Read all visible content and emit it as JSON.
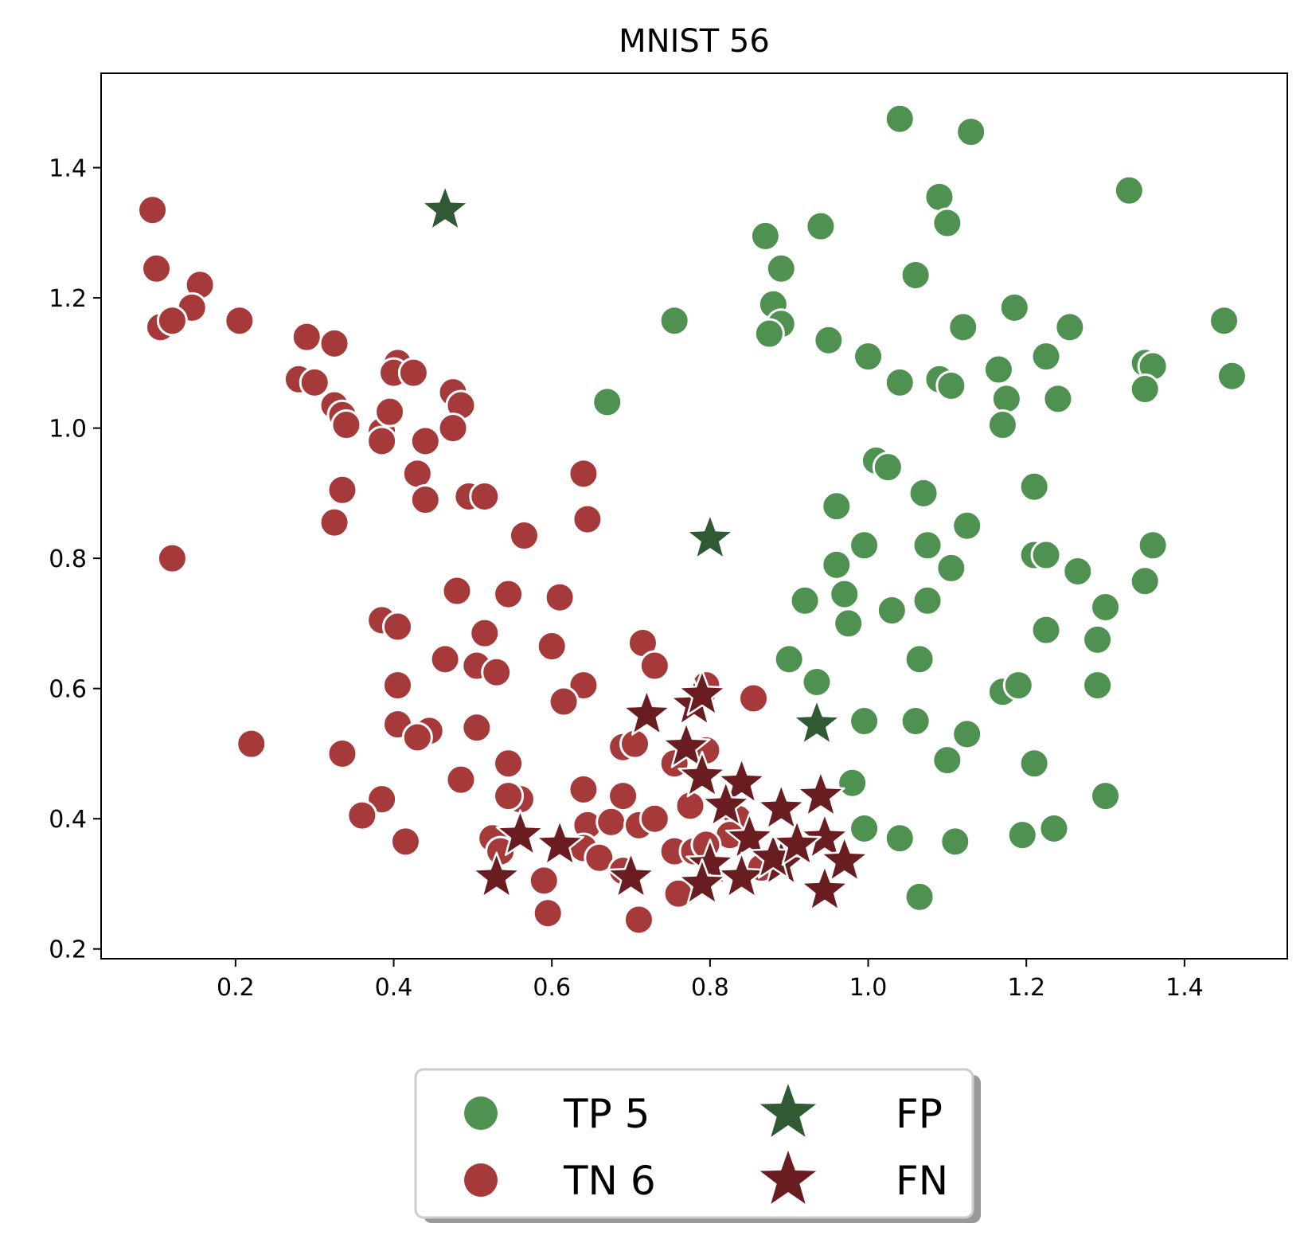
{
  "chart_data": {
    "type": "scatter",
    "title": "MNIST 56",
    "xlabel": "",
    "ylabel": "",
    "xlim": [
      0.03,
      1.53
    ],
    "ylim": [
      0.185,
      1.545
    ],
    "xticks": [
      0.2,
      0.4,
      0.6,
      0.8,
      1.0,
      1.2,
      1.4
    ],
    "yticks": [
      0.2,
      0.4,
      0.6,
      0.8,
      1.0,
      1.2,
      1.4
    ],
    "xtick_labels": [
      "0.2",
      "0.4",
      "0.6",
      "0.8",
      "1.0",
      "1.2",
      "1.4"
    ],
    "ytick_labels": [
      "0.2",
      "0.4",
      "0.6",
      "0.8",
      "1.0",
      "1.2",
      "1.4"
    ],
    "grid": false,
    "legend_position": "bottom-center",
    "series": [
      {
        "name": "TP 5",
        "marker": "circle",
        "color": "#4e9150",
        "points": [
          [
            1.04,
            1.475
          ],
          [
            1.13,
            1.455
          ],
          [
            1.33,
            1.365
          ],
          [
            1.09,
            1.355
          ],
          [
            1.1,
            1.315
          ],
          [
            0.94,
            1.31
          ],
          [
            0.87,
            1.295
          ],
          [
            0.89,
            1.245
          ],
          [
            1.06,
            1.235
          ],
          [
            0.88,
            1.19
          ],
          [
            0.89,
            1.16
          ],
          [
            0.875,
            1.145
          ],
          [
            0.755,
            1.165
          ],
          [
            1.185,
            1.185
          ],
          [
            1.12,
            1.155
          ],
          [
            1.255,
            1.155
          ],
          [
            1.45,
            1.165
          ],
          [
            0.95,
            1.135
          ],
          [
            1.0,
            1.11
          ],
          [
            1.225,
            1.11
          ],
          [
            1.35,
            1.1
          ],
          [
            1.36,
            1.095
          ],
          [
            1.46,
            1.08
          ],
          [
            1.165,
            1.09
          ],
          [
            1.04,
            1.07
          ],
          [
            1.09,
            1.075
          ],
          [
            1.105,
            1.065
          ],
          [
            1.35,
            1.06
          ],
          [
            1.24,
            1.045
          ],
          [
            1.175,
            1.045
          ],
          [
            1.17,
            1.005
          ],
          [
            0.67,
            1.04
          ],
          [
            1.01,
            0.95
          ],
          [
            1.025,
            0.94
          ],
          [
            1.07,
            0.9
          ],
          [
            1.21,
            0.91
          ],
          [
            0.96,
            0.88
          ],
          [
            1.125,
            0.85
          ],
          [
            0.995,
            0.82
          ],
          [
            1.075,
            0.82
          ],
          [
            1.36,
            0.82
          ],
          [
            1.21,
            0.805
          ],
          [
            1.225,
            0.805
          ],
          [
            1.265,
            0.78
          ],
          [
            1.105,
            0.785
          ],
          [
            0.96,
            0.79
          ],
          [
            0.97,
            0.745
          ],
          [
            0.92,
            0.735
          ],
          [
            1.075,
            0.735
          ],
          [
            1.35,
            0.765
          ],
          [
            0.975,
            0.7
          ],
          [
            1.03,
            0.72
          ],
          [
            1.3,
            0.725
          ],
          [
            1.225,
            0.69
          ],
          [
            1.29,
            0.675
          ],
          [
            0.9,
            0.645
          ],
          [
            1.065,
            0.645
          ],
          [
            0.935,
            0.61
          ],
          [
            1.17,
            0.595
          ],
          [
            1.19,
            0.605
          ],
          [
            1.29,
            0.605
          ],
          [
            0.995,
            0.55
          ],
          [
            1.06,
            0.55
          ],
          [
            1.125,
            0.53
          ],
          [
            1.1,
            0.49
          ],
          [
            1.21,
            0.485
          ],
          [
            0.98,
            0.455
          ],
          [
            0.995,
            0.385
          ],
          [
            1.04,
            0.37
          ],
          [
            1.11,
            0.365
          ],
          [
            1.195,
            0.375
          ],
          [
            1.235,
            0.385
          ],
          [
            1.3,
            0.435
          ],
          [
            1.065,
            0.28
          ]
        ]
      },
      {
        "name": "TN 6",
        "marker": "circle",
        "color": "#a63939",
        "points": [
          [
            0.095,
            1.335
          ],
          [
            0.1,
            1.245
          ],
          [
            0.155,
            1.22
          ],
          [
            0.145,
            1.185
          ],
          [
            0.105,
            1.155
          ],
          [
            0.12,
            1.165
          ],
          [
            0.205,
            1.165
          ],
          [
            0.29,
            1.14
          ],
          [
            0.325,
            1.13
          ],
          [
            0.28,
            1.075
          ],
          [
            0.3,
            1.07
          ],
          [
            0.325,
            1.035
          ],
          [
            0.335,
            1.02
          ],
          [
            0.34,
            1.005
          ],
          [
            0.385,
            0.995
          ],
          [
            0.385,
            0.98
          ],
          [
            0.395,
            1.025
          ],
          [
            0.405,
            1.1
          ],
          [
            0.4,
            1.085
          ],
          [
            0.425,
            1.085
          ],
          [
            0.475,
            1.055
          ],
          [
            0.485,
            1.035
          ],
          [
            0.475,
            1.0
          ],
          [
            0.44,
            0.98
          ],
          [
            0.43,
            0.93
          ],
          [
            0.44,
            0.89
          ],
          [
            0.335,
            0.905
          ],
          [
            0.325,
            0.855
          ],
          [
            0.495,
            0.895
          ],
          [
            0.515,
            0.895
          ],
          [
            0.64,
            0.93
          ],
          [
            0.645,
            0.86
          ],
          [
            0.565,
            0.835
          ],
          [
            0.12,
            0.8
          ],
          [
            0.48,
            0.75
          ],
          [
            0.545,
            0.745
          ],
          [
            0.61,
            0.74
          ],
          [
            0.385,
            0.705
          ],
          [
            0.405,
            0.695
          ],
          [
            0.515,
            0.685
          ],
          [
            0.6,
            0.665
          ],
          [
            0.715,
            0.67
          ],
          [
            0.465,
            0.645
          ],
          [
            0.505,
            0.635
          ],
          [
            0.53,
            0.625
          ],
          [
            0.73,
            0.635
          ],
          [
            0.405,
            0.605
          ],
          [
            0.64,
            0.605
          ],
          [
            0.615,
            0.58
          ],
          [
            0.795,
            0.605
          ],
          [
            0.855,
            0.585
          ],
          [
            0.405,
            0.545
          ],
          [
            0.445,
            0.535
          ],
          [
            0.43,
            0.525
          ],
          [
            0.505,
            0.54
          ],
          [
            0.22,
            0.515
          ],
          [
            0.335,
            0.5
          ],
          [
            0.69,
            0.51
          ],
          [
            0.705,
            0.515
          ],
          [
            0.795,
            0.505
          ],
          [
            0.755,
            0.485
          ],
          [
            0.545,
            0.485
          ],
          [
            0.485,
            0.46
          ],
          [
            0.56,
            0.43
          ],
          [
            0.545,
            0.435
          ],
          [
            0.64,
            0.445
          ],
          [
            0.69,
            0.435
          ],
          [
            0.775,
            0.42
          ],
          [
            0.385,
            0.43
          ],
          [
            0.36,
            0.405
          ],
          [
            0.415,
            0.365
          ],
          [
            0.645,
            0.39
          ],
          [
            0.675,
            0.395
          ],
          [
            0.71,
            0.39
          ],
          [
            0.73,
            0.4
          ],
          [
            0.835,
            0.4
          ],
          [
            0.825,
            0.375
          ],
          [
            0.525,
            0.37
          ],
          [
            0.535,
            0.35
          ],
          [
            0.64,
            0.355
          ],
          [
            0.66,
            0.34
          ],
          [
            0.69,
            0.32
          ],
          [
            0.755,
            0.35
          ],
          [
            0.78,
            0.35
          ],
          [
            0.795,
            0.36
          ],
          [
            0.76,
            0.285
          ],
          [
            0.865,
            0.325
          ],
          [
            0.59,
            0.305
          ],
          [
            0.595,
            0.255
          ],
          [
            0.71,
            0.245
          ]
        ]
      },
      {
        "name": "FP",
        "marker": "star",
        "color": "#2f5a33",
        "points": [
          [
            0.465,
            1.335
          ],
          [
            0.8,
            0.83
          ],
          [
            0.935,
            0.545
          ]
        ]
      },
      {
        "name": "FN",
        "marker": "star",
        "color": "#6a1d20",
        "points": [
          [
            0.72,
            0.56
          ],
          [
            0.78,
            0.575
          ],
          [
            0.79,
            0.59
          ],
          [
            0.77,
            0.51
          ],
          [
            0.79,
            0.465
          ],
          [
            0.84,
            0.455
          ],
          [
            0.89,
            0.415
          ],
          [
            0.94,
            0.435
          ],
          [
            0.945,
            0.37
          ],
          [
            0.97,
            0.335
          ],
          [
            0.945,
            0.29
          ],
          [
            0.85,
            0.37
          ],
          [
            0.89,
            0.33
          ],
          [
            0.84,
            0.31
          ],
          [
            0.8,
            0.33
          ],
          [
            0.79,
            0.3
          ],
          [
            0.7,
            0.31
          ],
          [
            0.61,
            0.36
          ],
          [
            0.56,
            0.375
          ],
          [
            0.53,
            0.31
          ],
          [
            0.88,
            0.34
          ],
          [
            0.82,
            0.42
          ],
          [
            0.91,
            0.36
          ]
        ]
      }
    ]
  }
}
